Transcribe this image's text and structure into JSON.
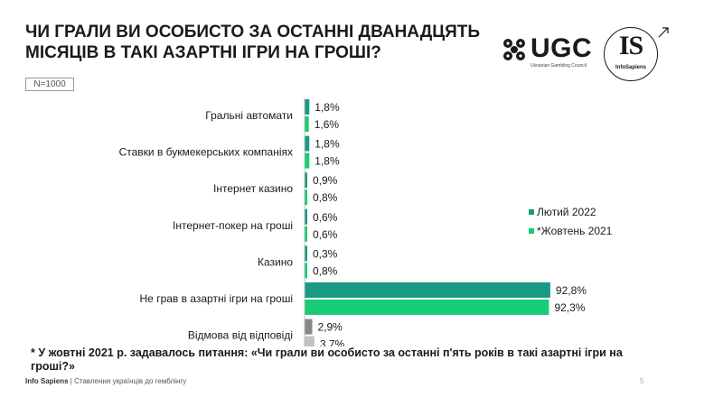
{
  "header": {
    "title_line1": "ЧИ ГРАЛИ ВИ ОСОБИСТО ЗА ОСТАННІ ДВАНАДЦЯТЬ",
    "title_line2": "МІСЯЦІВ В ТАКІ АЗАРТНІ ІГРИ НА ГРОШІ?",
    "sample_size": "N=1000"
  },
  "logos": {
    "ugc_text": "UGC",
    "ugc_subtitle": "Ukrainian Gambling Council",
    "is_text": "IS",
    "is_subtitle": "InfoSapiens"
  },
  "chart_data": {
    "type": "bar",
    "orientation": "horizontal",
    "categories": [
      "Гральні автомати",
      "Ставки в букмекерських компаніях",
      "Інтернет казино",
      "Інтернет-покер на гроші",
      "Казино",
      "Не грав в азартні ігри на гроші",
      "Відмова від відповіді"
    ],
    "series": [
      {
        "name": "Лютий 2022",
        "color": "#1a9a82",
        "values": [
          1.8,
          1.8,
          0.9,
          0.6,
          0.3,
          92.8,
          2.9
        ],
        "labels": [
          "1,8%",
          "1,8%",
          "0,9%",
          "0,6%",
          "0,3%",
          "92,8%",
          "2,9%"
        ]
      },
      {
        "name": "*Жовтень 2021",
        "color": "#18cc78",
        "values": [
          1.6,
          1.8,
          0.8,
          0.6,
          0.8,
          92.3,
          3.7
        ],
        "labels": [
          "1,6%",
          "1,8%",
          "0,8%",
          "0,6%",
          "0,8%",
          "92,3%",
          "3,7%"
        ]
      }
    ],
    "special_colors": {
      "refusal_series1": "#888888",
      "refusal_series2": "#c2c2c2"
    },
    "legend_position": "right",
    "xlim": [
      0,
      100
    ],
    "grid": false
  },
  "footnote": "* У жовтні 2021 р. задавалось питання: «Чи грали ви особисто за останні п'ять років в такі азартні ігри на гроші?»",
  "footer": {
    "brand": "Info Sapiens",
    "separator": " | ",
    "report": "Ставлення українців до гемблінгу",
    "page_number": "5"
  }
}
